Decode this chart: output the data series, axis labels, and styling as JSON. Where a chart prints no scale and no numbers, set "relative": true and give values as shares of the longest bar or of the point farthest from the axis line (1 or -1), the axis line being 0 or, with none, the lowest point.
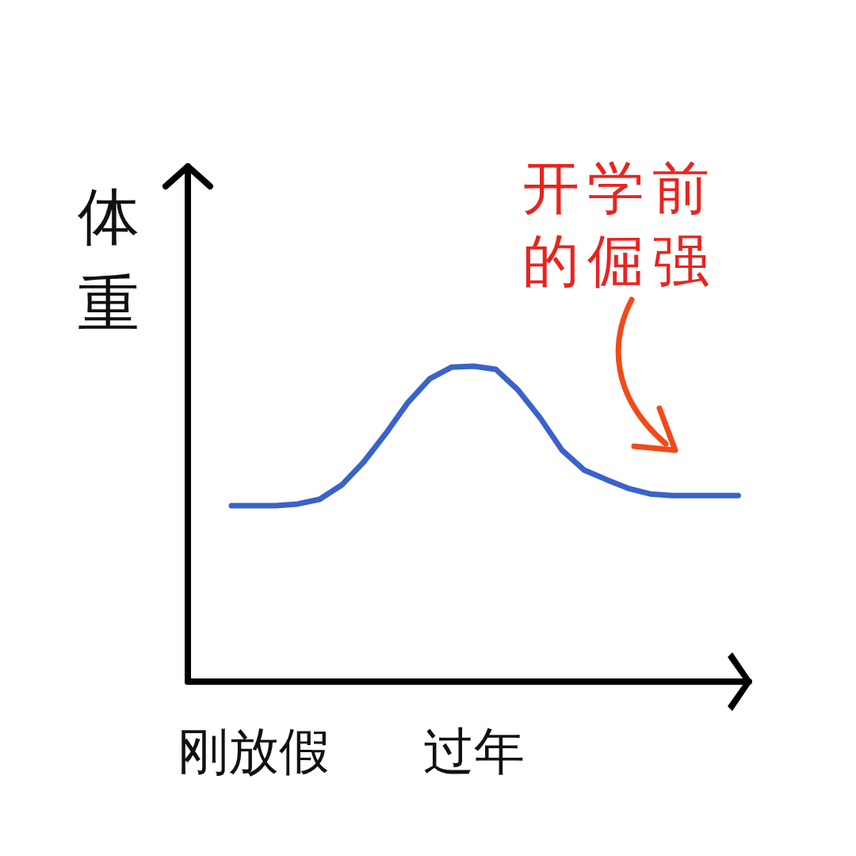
{
  "chart_data": {
    "type": "line",
    "relative": true,
    "ylabel": "体重",
    "color": "#3a62c9",
    "categories": [
      null,
      "刚放假",
      null,
      null,
      null,
      null,
      null,
      null,
      null,
      null,
      null,
      "过年",
      null,
      null,
      null,
      null,
      null,
      null,
      null,
      null,
      null,
      null,
      null,
      null
    ],
    "values": [
      0.558,
      0.558,
      0.558,
      0.563,
      0.578,
      0.623,
      0.696,
      0.786,
      0.884,
      0.96,
      0.997,
      1,
      0.99,
      0.925,
      0.837,
      0.734,
      0.671,
      0.641,
      0.613,
      0.595,
      0.59,
      0.59,
      0.59,
      0.59
    ],
    "annotations": [
      "开学前",
      "的倔强"
    ]
  }
}
